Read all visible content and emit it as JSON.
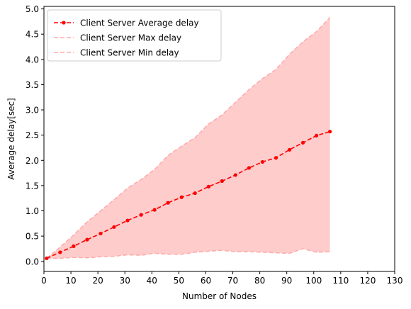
{
  "chart_data": {
    "type": "line",
    "title": "",
    "xlabel": "Number of Nodes",
    "ylabel": "Average delay[sec]",
    "xlim": [
      0,
      130
    ],
    "ylim": [
      -0.2,
      5.05
    ],
    "xticks": [
      0,
      10,
      20,
      30,
      40,
      50,
      60,
      70,
      80,
      90,
      100,
      110,
      120,
      130
    ],
    "yticks": [
      0.0,
      0.5,
      1.0,
      1.5,
      2.0,
      2.5,
      3.0,
      3.5,
      4.0,
      4.5,
      5.0
    ],
    "xtick_labels": [
      "0",
      "10",
      "20",
      "30",
      "40",
      "50",
      "60",
      "70",
      "80",
      "90",
      "100",
      "110",
      "120",
      "130"
    ],
    "ytick_labels": [
      "0.0",
      "0.5",
      "1.0",
      "1.5",
      "2.0",
      "2.5",
      "3.0",
      "3.5",
      "4.0",
      "4.5",
      "5.0"
    ],
    "grid": false,
    "legend_position": "top-left",
    "x": [
      1,
      6,
      11,
      16,
      21,
      26,
      31,
      36,
      41,
      46,
      51,
      56,
      61,
      66,
      71,
      76,
      81,
      86,
      91,
      96,
      101,
      106
    ],
    "series": [
      {
        "name": "Client Server Average delay",
        "color": "#ff0000",
        "style": "dashed-markers",
        "values": [
          0.06,
          0.18,
          0.3,
          0.43,
          0.55,
          0.68,
          0.81,
          0.92,
          1.02,
          1.16,
          1.27,
          1.35,
          1.48,
          1.59,
          1.71,
          1.85,
          1.97,
          2.05,
          2.21,
          2.35,
          2.49,
          2.57
        ]
      },
      {
        "name": "Client Server Max delay",
        "color": "#ffaaaa",
        "style": "dashed",
        "values": [
          0.06,
          0.28,
          0.52,
          0.78,
          1.0,
          1.22,
          1.45,
          1.62,
          1.82,
          2.1,
          2.28,
          2.45,
          2.72,
          2.9,
          3.15,
          3.4,
          3.62,
          3.8,
          4.1,
          4.35,
          4.55,
          4.83
        ]
      },
      {
        "name": "Client Server Min delay",
        "color": "#ffaaaa",
        "style": "dashed",
        "values": [
          0.06,
          0.06,
          0.08,
          0.07,
          0.09,
          0.1,
          0.13,
          0.12,
          0.16,
          0.14,
          0.14,
          0.18,
          0.2,
          0.22,
          0.19,
          0.19,
          0.18,
          0.17,
          0.16,
          0.25,
          0.18,
          0.19
        ]
      }
    ],
    "fill_between": {
      "upper": "Client Server Max delay",
      "lower": "Client Server Min delay",
      "color": "#ffcccc"
    }
  }
}
